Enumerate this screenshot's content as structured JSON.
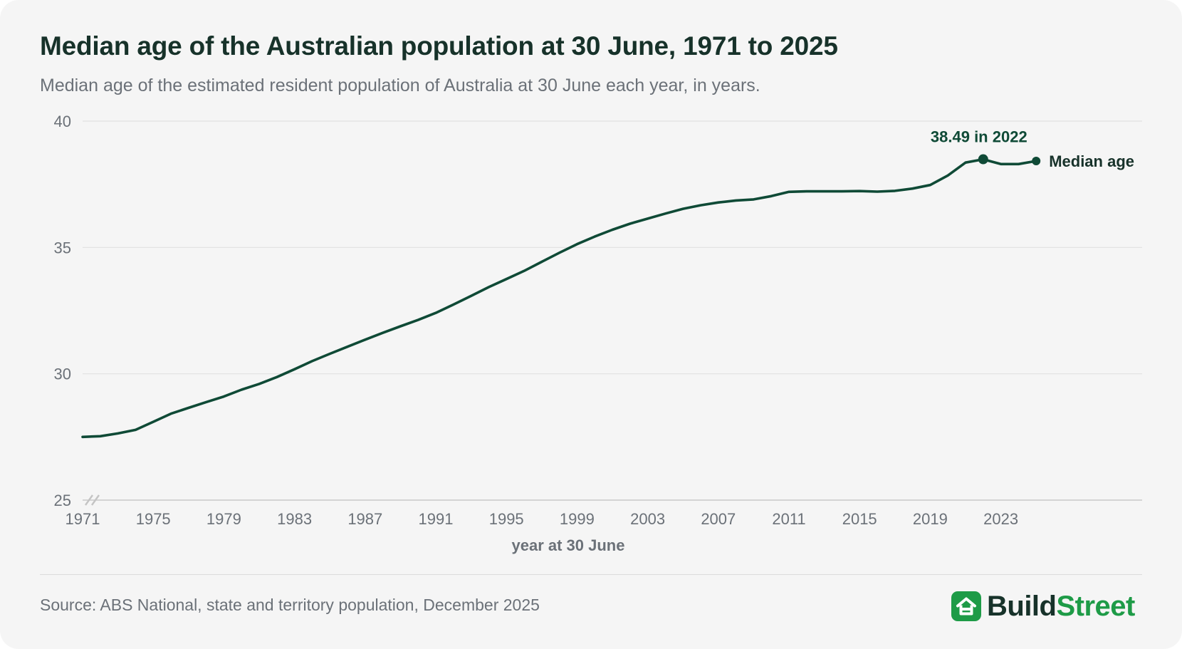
{
  "header": {
    "title": "Median age of the Australian population at 30 June, 1971 to 2025",
    "subtitle": "Median age of the estimated resident population of Australia at 30 June each year, in years."
  },
  "footer": {
    "source": "Source: ABS National, state and territory population, December 2025",
    "brand_part1": "Build",
    "brand_part2": "Street",
    "brand_icon": "house-icon"
  },
  "colors": {
    "line": "#0f4a36",
    "title": "#17322a",
    "muted": "#6b7178",
    "grid": "#e0e0e0",
    "brand_green": "#1e9b47"
  },
  "chart_data": {
    "type": "line",
    "title": "Median age of the Australian population at 30 June, 1971 to 2025",
    "xlabel": "year at 30 June",
    "ylabel": "",
    "ylim": [
      25,
      40
    ],
    "xlim": [
      1971,
      2031
    ],
    "yticks": [
      25,
      30,
      35,
      40
    ],
    "xticks": [
      1971,
      1975,
      1979,
      1983,
      1987,
      1991,
      1995,
      1999,
      2003,
      2007,
      2011,
      2015,
      2019,
      2023
    ],
    "grid": true,
    "axis_break": true,
    "series": [
      {
        "name": "Median age",
        "x": [
          1971,
          1972,
          1973,
          1974,
          1975,
          1976,
          1977,
          1978,
          1979,
          1980,
          1981,
          1982,
          1983,
          1984,
          1985,
          1986,
          1987,
          1988,
          1989,
          1990,
          1991,
          1992,
          1993,
          1994,
          1995,
          1996,
          1997,
          1998,
          1999,
          2000,
          2001,
          2002,
          2003,
          2004,
          2005,
          2006,
          2007,
          2008,
          2009,
          2010,
          2011,
          2012,
          2013,
          2014,
          2015,
          2016,
          2017,
          2018,
          2019,
          2020,
          2021,
          2022,
          2023,
          2024,
          2025
        ],
        "values": [
          27.5,
          27.53,
          27.64,
          27.78,
          28.1,
          28.42,
          28.65,
          28.88,
          29.1,
          29.37,
          29.6,
          29.87,
          30.18,
          30.5,
          30.79,
          31.07,
          31.35,
          31.62,
          31.88,
          32.13,
          32.41,
          32.74,
          33.08,
          33.43,
          33.75,
          34.07,
          34.43,
          34.79,
          35.13,
          35.43,
          35.7,
          35.94,
          36.14,
          36.34,
          36.53,
          36.67,
          36.78,
          36.86,
          36.9,
          37.03,
          37.2,
          37.22,
          37.22,
          37.22,
          37.23,
          37.21,
          37.24,
          37.33,
          37.47,
          37.85,
          38.36,
          38.49,
          38.3,
          38.3,
          38.42
        ]
      }
    ],
    "annotations": [
      {
        "text": "38.49 in 2022",
        "x": 2022,
        "y": 38.49
      }
    ],
    "end_label": "Median age"
  }
}
